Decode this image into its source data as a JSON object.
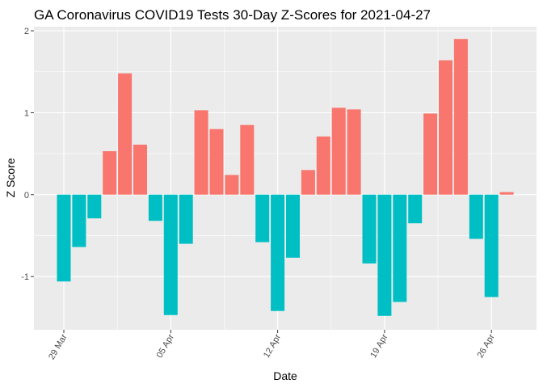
{
  "chart_data": {
    "type": "bar",
    "title": "GA Coronavirus COVID19 Tests 30-Day Z-Scores for 2021-04-27",
    "xlabel": "Date",
    "ylabel": "Z Score",
    "x_start": "2021-03-29",
    "x": [
      "2021-03-29",
      "2021-03-30",
      "2021-03-31",
      "2021-04-01",
      "2021-04-02",
      "2021-04-03",
      "2021-04-04",
      "2021-04-05",
      "2021-04-06",
      "2021-04-07",
      "2021-04-08",
      "2021-04-09",
      "2021-04-10",
      "2021-04-11",
      "2021-04-12",
      "2021-04-13",
      "2021-04-14",
      "2021-04-15",
      "2021-04-16",
      "2021-04-17",
      "2021-04-18",
      "2021-04-19",
      "2021-04-20",
      "2021-04-21",
      "2021-04-22",
      "2021-04-23",
      "2021-04-24",
      "2021-04-25",
      "2021-04-26",
      "2021-04-27"
    ],
    "values": [
      -1.06,
      -0.64,
      -0.29,
      0.53,
      1.48,
      0.61,
      -0.32,
      -1.47,
      -0.6,
      1.03,
      0.8,
      0.24,
      0.85,
      -0.58,
      -1.42,
      -0.77,
      0.3,
      0.71,
      1.06,
      1.04,
      -0.84,
      -1.48,
      -1.31,
      -0.35,
      0.99,
      1.64,
      1.9,
      -0.54,
      -1.25,
      0.03
    ],
    "ylim": [
      -1.65,
      2.05
    ],
    "y_ticks": [
      -1,
      0,
      1,
      2
    ],
    "y_tick_labels": [
      "-1",
      "0",
      "1",
      "2"
    ],
    "x_ticks": [
      "2021-03-29",
      "2021-04-05",
      "2021-04-12",
      "2021-04-19",
      "2021-04-26"
    ],
    "x_tick_labels": [
      "29 Mar",
      "05 Apr",
      "12 Apr",
      "19 Apr",
      "26 Apr"
    ],
    "colors": {
      "positive": "#F8766D",
      "negative": "#00BFC4",
      "panel": "#EBEBEB",
      "grid": "#FFFFFF"
    },
    "grid": true,
    "legend": "none"
  }
}
